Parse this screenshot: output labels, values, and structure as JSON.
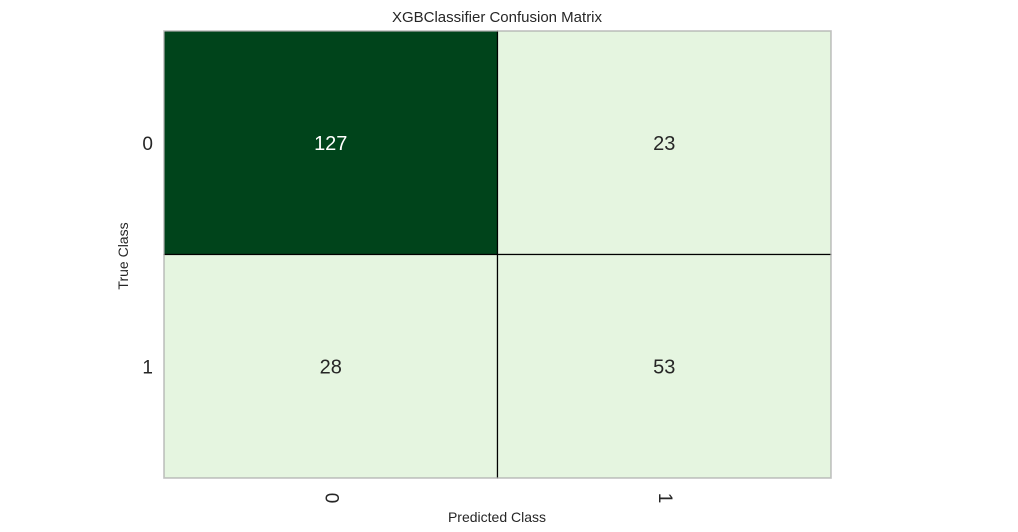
{
  "chart_data": {
    "type": "heatmap",
    "title": "XGBClassifier Confusion Matrix",
    "xlabel": "Predicted Class",
    "ylabel": "True Class",
    "x_categories": [
      "0",
      "1"
    ],
    "y_categories": [
      "0",
      "1"
    ],
    "values": [
      [
        127,
        23
      ],
      [
        28,
        53
      ]
    ],
    "colormap": "Greens",
    "colors": {
      "dark": "#00441b",
      "mid": "#a1d99b",
      "light": "#e5f5e0",
      "text_on_dark": "#ffffff",
      "text_on_light": "#262626"
    },
    "grid": false
  }
}
